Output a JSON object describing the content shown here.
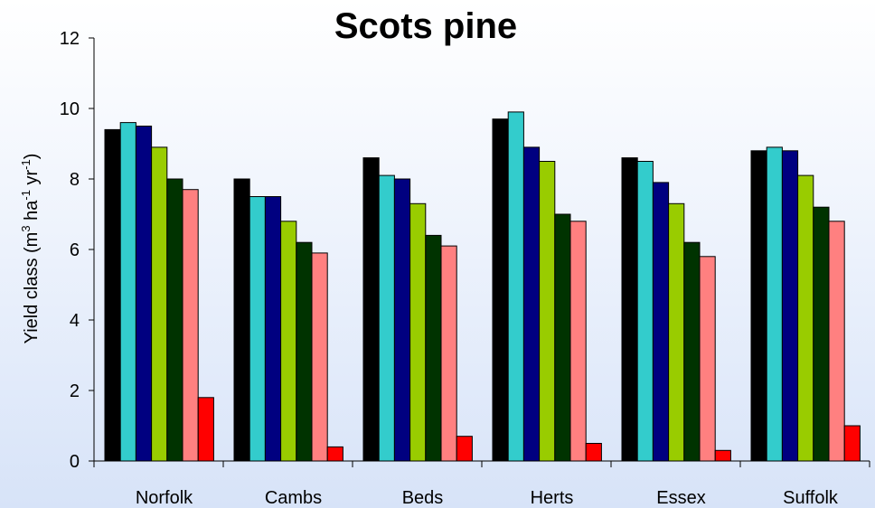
{
  "chart_data": {
    "type": "bar",
    "title": "Scots pine",
    "ylabel": "Yield class (m3 ha-1 yr-1)",
    "ylabel_parts": {
      "pre": "Yield class (m",
      "sup1": "3",
      "mid": " ha",
      "sup2": "-1",
      "mid2": " yr",
      "sup3": "-1",
      "post": ")"
    },
    "xlabel": "",
    "categories": [
      "Norfolk",
      "Cambs",
      "Beds",
      "Herts",
      "Essex",
      "Suffolk"
    ],
    "ylim": [
      0,
      12
    ],
    "yticks": [
      0,
      2,
      4,
      6,
      8,
      10,
      12
    ],
    "grid": false,
    "legend": "none",
    "series": [
      {
        "color": "#000000",
        "values": [
          9.4,
          8.0,
          8.6,
          9.7,
          8.6,
          8.8
        ]
      },
      {
        "color": "#33CCCC",
        "values": [
          9.6,
          7.5,
          8.1,
          9.9,
          8.5,
          8.9
        ]
      },
      {
        "color": "#000080",
        "values": [
          9.5,
          7.5,
          8.0,
          8.9,
          7.9,
          8.8
        ]
      },
      {
        "color": "#99CC00",
        "values": [
          8.9,
          6.8,
          7.3,
          8.5,
          7.3,
          8.1
        ]
      },
      {
        "color": "#003300",
        "values": [
          8.0,
          6.2,
          6.4,
          7.0,
          6.2,
          7.2
        ]
      },
      {
        "color": "#FF8080",
        "values": [
          7.7,
          5.9,
          6.1,
          6.8,
          5.8,
          6.8
        ]
      },
      {
        "color": "#FF0000",
        "values": [
          1.8,
          0.4,
          0.7,
          0.5,
          0.3,
          1.0
        ]
      }
    ]
  }
}
